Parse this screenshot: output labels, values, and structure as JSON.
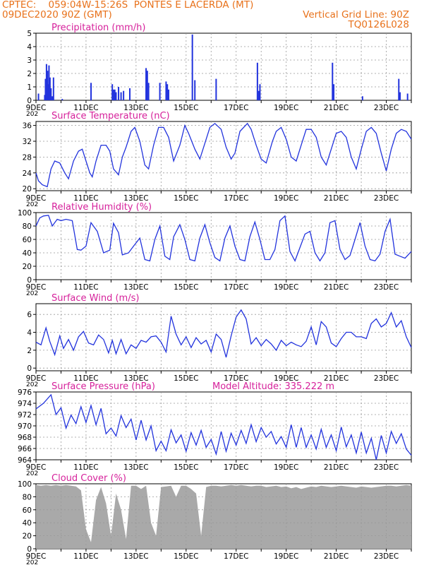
{
  "header": {
    "source": "CPTEC:",
    "coords": "059:04W-15:26S",
    "location": "PONTES E LACERDA (MT)",
    "datetime": "09DEC2020 90Z (GMT)",
    "grid_note": "Vertical Grid Line: 90Z",
    "code": "TQ0126L028"
  },
  "colors": {
    "header": "#e8711a",
    "title": "#d6219b",
    "series": "#2233dd",
    "cloud": "#a9a9a9",
    "grid": "#999999"
  },
  "x_axis": {
    "start": "09DEC2020",
    "end": "24DEC2020",
    "tick_labels": [
      "9DEC",
      "11DEC",
      "13DEC",
      "15DEC",
      "17DEC",
      "19DEC",
      "21DEC",
      "23DEC"
    ],
    "partial_year_label": "202"
  },
  "chart_data": [
    {
      "id": "precip",
      "type": "bar",
      "title": "Precipitation (mm/h)",
      "ylim": [
        0,
        5
      ],
      "yticks": [
        0,
        1,
        2,
        3,
        4,
        5
      ],
      "grid": true,
      "x": [
        0.1,
        0.35,
        0.38,
        0.42,
        0.46,
        0.48,
        0.5,
        0.52,
        0.56,
        0.6,
        0.65,
        0.7,
        1.05,
        2.2,
        3.05,
        3.1,
        3.15,
        3.2,
        3.3,
        3.4,
        3.5,
        3.75,
        4.4,
        4.45,
        4.5,
        4.95,
        5.2,
        5.25,
        5.3,
        6.25,
        6.35,
        7.2,
        8.85,
        8.9,
        8.95,
        11.85,
        11.9,
        13.05,
        14.5,
        14.55,
        14.85
      ],
      "values": [
        0.5,
        0.4,
        1.6,
        2.7,
        2.2,
        1.2,
        0.8,
        2.6,
        1.7,
        0.9,
        0.3,
        1.7,
        0.1,
        1.3,
        1.2,
        0.8,
        0.8,
        0.6,
        1.0,
        0.6,
        0.7,
        0.9,
        2.4,
        2.2,
        1.3,
        1.3,
        1.4,
        1.2,
        0.8,
        4.9,
        1.5,
        1.6,
        2.8,
        0.7,
        1.2,
        2.8,
        1.2,
        0.3,
        1.6,
        0.6,
        0.5
      ]
    },
    {
      "id": "temperature",
      "type": "line",
      "title": "Surface Temperature (nC)",
      "ylim": [
        19.5,
        37
      ],
      "yticks": [
        20,
        24,
        28,
        32,
        36
      ],
      "grid": true,
      "x": [
        0,
        0.1,
        0.25,
        0.45,
        0.6,
        0.75,
        0.95,
        1.15,
        1.3,
        1.5,
        1.7,
        1.85,
        2.0,
        2.15,
        2.25,
        2.4,
        2.6,
        2.8,
        2.95,
        3.1,
        3.3,
        3.45,
        3.6,
        3.8,
        3.95,
        4.15,
        4.35,
        4.5,
        4.7,
        4.9,
        5.1,
        5.3,
        5.5,
        5.75,
        5.95,
        6.1,
        6.35,
        6.55,
        6.8,
        6.95,
        7.15,
        7.4,
        7.6,
        7.8,
        7.95,
        8.15,
        8.45,
        8.6,
        8.8,
        9.0,
        9.2,
        9.45,
        9.6,
        9.8,
        10.0,
        10.2,
        10.4,
        10.6,
        10.8,
        11.0,
        11.2,
        11.4,
        11.6,
        11.8,
        12.0,
        12.2,
        12.4,
        12.6,
        12.8,
        13.0,
        13.2,
        13.4,
        13.6,
        13.8,
        14.0,
        14.2,
        14.4,
        14.6,
        14.8,
        15.0
      ],
      "values": [
        24,
        22,
        21,
        20.5,
        25,
        27,
        26.5,
        24,
        22.5,
        27,
        29.5,
        30,
        27,
        24,
        23,
        27,
        31,
        31,
        29.5,
        25,
        23.5,
        28,
        30.5,
        34.5,
        35.5,
        32,
        26,
        25,
        31,
        35.5,
        35.5,
        33,
        27,
        31,
        36,
        34,
        30,
        27.5,
        32.5,
        35.5,
        36.5,
        35,
        30.5,
        27.5,
        29,
        34.5,
        36.5,
        35,
        31,
        27.5,
        26.5,
        32,
        34.5,
        35.5,
        32.5,
        28,
        27,
        31,
        35,
        35,
        33,
        28,
        26,
        30,
        34,
        34.5,
        33,
        28,
        25,
        30,
        34.5,
        35.5,
        34,
        29,
        24.5,
        30,
        34,
        35,
        34.5,
        32.5
      ]
    },
    {
      "id": "humidity",
      "type": "line",
      "title": "Relative Humidity (%)",
      "ylim": [
        0,
        100
      ],
      "yticks": [
        0,
        20,
        40,
        60,
        80,
        100
      ],
      "grid": true,
      "x": [
        0,
        0.15,
        0.3,
        0.5,
        0.65,
        0.85,
        1.0,
        1.2,
        1.45,
        1.65,
        1.8,
        2.0,
        2.2,
        2.45,
        2.7,
        2.95,
        3.1,
        3.3,
        3.45,
        3.7,
        3.9,
        4.15,
        4.35,
        4.55,
        4.75,
        4.95,
        5.15,
        5.35,
        5.5,
        5.75,
        5.95,
        6.15,
        6.35,
        6.55,
        6.75,
        6.95,
        7.15,
        7.35,
        7.55,
        7.75,
        7.95,
        8.15,
        8.35,
        8.55,
        8.75,
        8.95,
        9.15,
        9.35,
        9.55,
        9.75,
        9.95,
        10.15,
        10.35,
        10.55,
        10.75,
        10.95,
        11.15,
        11.35,
        11.55,
        11.75,
        11.95,
        12.15,
        12.35,
        12.55,
        12.75,
        12.95,
        13.15,
        13.35,
        13.55,
        13.75,
        13.95,
        14.15,
        14.35,
        14.55,
        14.75,
        15.0
      ],
      "values": [
        80,
        92,
        95,
        96,
        80,
        90,
        88,
        90,
        88,
        45,
        44,
        50,
        85,
        72,
        40,
        44,
        84,
        70,
        37,
        40,
        50,
        62,
        30,
        28,
        60,
        80,
        35,
        30,
        64,
        82,
        60,
        30,
        28,
        62,
        82,
        55,
        33,
        28,
        62,
        80,
        50,
        30,
        28,
        64,
        86,
        60,
        30,
        30,
        45,
        88,
        95,
        42,
        28,
        48,
        68,
        72,
        40,
        28,
        40,
        85,
        88,
        45,
        30,
        36,
        60,
        85,
        50,
        30,
        28,
        38,
        72,
        90,
        38,
        35,
        32,
        42
      ]
    },
    {
      "id": "wind",
      "type": "line",
      "title": "Surface Wind (m/s)",
      "ylim": [
        -0.3,
        7.2
      ],
      "yticks": [
        0,
        2,
        4,
        6
      ],
      "grid": true,
      "x": [
        0,
        0.2,
        0.4,
        0.55,
        0.75,
        0.95,
        1.1,
        1.3,
        1.5,
        1.7,
        1.9,
        2.1,
        2.3,
        2.5,
        2.7,
        2.9,
        3.05,
        3.2,
        3.4,
        3.6,
        3.8,
        4.0,
        4.2,
        4.4,
        4.6,
        4.8,
        5.0,
        5.2,
        5.4,
        5.6,
        5.8,
        6.0,
        6.2,
        6.4,
        6.6,
        6.8,
        7.0,
        7.2,
        7.4,
        7.6,
        7.8,
        8.0,
        8.2,
        8.4,
        8.6,
        8.8,
        9.0,
        9.2,
        9.4,
        9.6,
        9.8,
        10.0,
        10.2,
        10.4,
        10.6,
        10.8,
        11.0,
        11.2,
        11.4,
        11.6,
        11.8,
        12.0,
        12.2,
        12.4,
        12.6,
        12.8,
        13.0,
        13.2,
        13.4,
        13.6,
        13.8,
        14.0,
        14.2,
        14.4,
        14.6,
        14.8,
        15.0
      ],
      "values": [
        2.9,
        2.6,
        4.5,
        3.0,
        1.5,
        3.6,
        2.2,
        3.2,
        2.0,
        3.5,
        4.1,
        2.8,
        2.6,
        3.7,
        3.2,
        1.7,
        3.1,
        1.6,
        3.2,
        1.6,
        2.6,
        2.2,
        3.1,
        2.9,
        3.5,
        3.6,
        2.9,
        1.8,
        5.8,
        3.8,
        2.6,
        3.5,
        2.3,
        3.4,
        2.7,
        3.1,
        1.8,
        3.8,
        3.2,
        1.2,
        3.6,
        5.7,
        6.5,
        5.5,
        2.7,
        3.4,
        2.5,
        3.2,
        2.7,
        2.0,
        3.1,
        2.5,
        2.9,
        2.6,
        2.4,
        3.0,
        4.6,
        2.6,
        5.2,
        4.6,
        2.8,
        2.4,
        3.3,
        4.0,
        4.0,
        3.5,
        3.5,
        3.3,
        5.0,
        5.5,
        4.6,
        5.0,
        6.2,
        4.6,
        5.3,
        3.5,
        2.3
      ]
    },
    {
      "id": "pressure",
      "type": "line",
      "title": "Surface Pressure (hPa)",
      "annotation": "Model Altitude: 335.222 m",
      "ylim": [
        964,
        976
      ],
      "yticks": [
        964,
        966,
        968,
        970,
        972,
        974,
        976
      ],
      "grid": true,
      "x": [
        0,
        0.3,
        0.6,
        0.8,
        1.0,
        1.2,
        1.4,
        1.6,
        1.8,
        2.0,
        2.2,
        2.4,
        2.6,
        2.8,
        3.0,
        3.2,
        3.4,
        3.6,
        3.8,
        4.0,
        4.2,
        4.4,
        4.6,
        4.8,
        5.0,
        5.2,
        5.4,
        5.6,
        5.8,
        6.0,
        6.2,
        6.4,
        6.6,
        6.8,
        7.0,
        7.2,
        7.4,
        7.6,
        7.8,
        8.0,
        8.2,
        8.4,
        8.6,
        8.8,
        9.0,
        9.2,
        9.4,
        9.6,
        9.8,
        10.0,
        10.2,
        10.4,
        10.6,
        10.8,
        11.0,
        11.2,
        11.4,
        11.6,
        11.8,
        12.0,
        12.2,
        12.4,
        12.6,
        12.8,
        13.0,
        13.2,
        13.4,
        13.6,
        13.8,
        14.0,
        14.2,
        14.4,
        14.6,
        14.8,
        15.0
      ],
      "values": [
        973,
        974,
        975.5,
        972,
        973.2,
        969.6,
        971.9,
        970.4,
        973.4,
        970.6,
        973.6,
        970.2,
        973.1,
        968.6,
        969.6,
        968.2,
        971.8,
        969.7,
        971.2,
        967.5,
        971.0,
        967.5,
        970.0,
        965.6,
        967.3,
        965.6,
        969.3,
        967.0,
        968.4,
        965.5,
        968.8,
        966.6,
        969.2,
        966.2,
        967.6,
        965.0,
        969.0,
        965.5,
        968.7,
        966.6,
        969.2,
        966.9,
        970.2,
        967.2,
        969.7,
        968.0,
        969.0,
        966.8,
        968.1,
        966.2,
        970.2,
        966.2,
        969.7,
        966.2,
        968.4,
        965.9,
        969.4,
        966.2,
        968.4,
        965.6,
        969.8,
        966.3,
        968.4,
        965.2,
        968.9,
        965.2,
        967.8,
        964.0,
        968.3,
        965.2,
        969.0,
        966.9,
        968.6,
        965.9,
        964.8
      ]
    },
    {
      "id": "cloud",
      "type": "area",
      "title": "Cloud Cover (%)",
      "ylim": [
        0,
        100
      ],
      "yticks": [
        0,
        20,
        40,
        60,
        80,
        100
      ],
      "grid": true,
      "x": [
        0,
        0.2,
        0.4,
        0.6,
        0.8,
        1.0,
        1.2,
        1.4,
        1.6,
        1.8,
        2.0,
        2.2,
        2.4,
        2.6,
        2.8,
        3.0,
        3.2,
        3.4,
        3.6,
        3.8,
        4.0,
        4.2,
        4.4,
        4.6,
        4.8,
        5.0,
        5.2,
        5.4,
        5.6,
        5.8,
        6.0,
        6.2,
        6.4,
        6.6,
        6.8,
        7.0,
        7.2,
        7.4,
        7.6,
        7.8,
        8.0,
        8.2,
        8.4,
        8.6,
        8.8,
        9.0,
        9.2,
        9.4,
        9.6,
        9.8,
        10.0,
        10.2,
        10.4,
        10.6,
        10.8,
        11.0,
        11.2,
        11.4,
        11.6,
        11.8,
        12.0,
        12.2,
        12.4,
        12.6,
        12.8,
        13.0,
        13.2,
        13.4,
        13.6,
        13.8,
        14.0,
        14.2,
        14.4,
        14.6,
        14.8,
        15.0
      ],
      "values": [
        98,
        97,
        98,
        97,
        98,
        97,
        98,
        97,
        96,
        90,
        30,
        10,
        75,
        95,
        70,
        20,
        85,
        60,
        15,
        97,
        97,
        92,
        97,
        40,
        20,
        95,
        96,
        97,
        80,
        97,
        97,
        92,
        85,
        20,
        95,
        97,
        97,
        96,
        97,
        98,
        97,
        98,
        97,
        96,
        97,
        97,
        95,
        96,
        97,
        95,
        96,
        93,
        95,
        92,
        94,
        96,
        95,
        97,
        96,
        95,
        96,
        97,
        96,
        95,
        94,
        96,
        95,
        94,
        95,
        96,
        97,
        97,
        96,
        97,
        98,
        97
      ]
    }
  ]
}
